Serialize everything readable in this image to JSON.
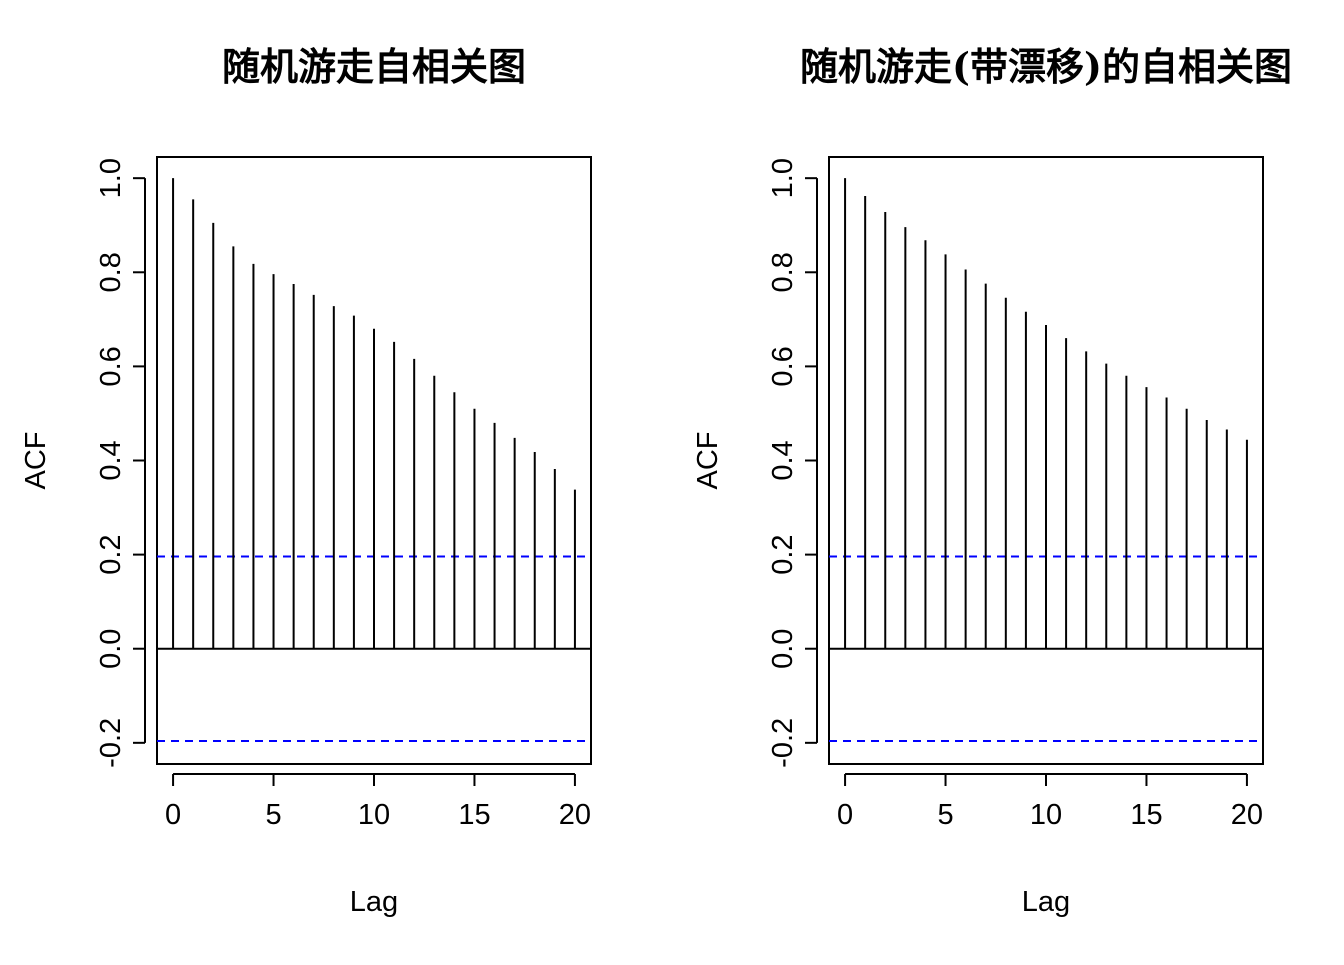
{
  "chart_data": [
    {
      "type": "bar",
      "title": "随机游走自相关图",
      "xlabel": "Lag",
      "ylabel": "ACF",
      "xlim": [
        -0.8,
        20.8
      ],
      "ylim": [
        -0.245,
        1.045
      ],
      "xticks": [
        0,
        5,
        10,
        15,
        20
      ],
      "xtick_labels": [
        "0",
        "5",
        "10",
        "15",
        "20"
      ],
      "yticks": [
        -0.2,
        0.0,
        0.2,
        0.4,
        0.6,
        0.8,
        1.0
      ],
      "ytick_labels": [
        "-0.2",
        "0.0",
        "0.2",
        "0.4",
        "0.6",
        "0.8",
        "1.0"
      ],
      "x": [
        0,
        1,
        2,
        3,
        4,
        5,
        6,
        7,
        8,
        9,
        10,
        11,
        12,
        13,
        14,
        15,
        16,
        17,
        18,
        19,
        20
      ],
      "values": [
        1.0,
        0.955,
        0.905,
        0.855,
        0.818,
        0.796,
        0.775,
        0.752,
        0.728,
        0.708,
        0.68,
        0.652,
        0.616,
        0.58,
        0.545,
        0.51,
        0.48,
        0.448,
        0.418,
        0.382,
        0.338
      ],
      "confidence_bound": 0.196,
      "bound_color": "#0000ff",
      "grid": false
    },
    {
      "type": "bar",
      "title": "随机游走(带漂移)的自相关图",
      "xlabel": "Lag",
      "ylabel": "ACF",
      "xlim": [
        -0.8,
        20.8
      ],
      "ylim": [
        -0.245,
        1.045
      ],
      "xticks": [
        0,
        5,
        10,
        15,
        20
      ],
      "xtick_labels": [
        "0",
        "5",
        "10",
        "15",
        "20"
      ],
      "yticks": [
        -0.2,
        0.0,
        0.2,
        0.4,
        0.6,
        0.8,
        1.0
      ],
      "ytick_labels": [
        "-0.2",
        "0.0",
        "0.2",
        "0.4",
        "0.6",
        "0.8",
        "1.0"
      ],
      "x": [
        0,
        1,
        2,
        3,
        4,
        5,
        6,
        7,
        8,
        9,
        10,
        11,
        12,
        13,
        14,
        15,
        16,
        17,
        18,
        19,
        20
      ],
      "values": [
        1.0,
        0.962,
        0.928,
        0.896,
        0.868,
        0.838,
        0.806,
        0.776,
        0.746,
        0.716,
        0.688,
        0.66,
        0.632,
        0.606,
        0.58,
        0.556,
        0.534,
        0.51,
        0.486,
        0.466,
        0.444
      ],
      "confidence_bound": 0.196,
      "bound_color": "#0000ff",
      "grid": false
    }
  ]
}
